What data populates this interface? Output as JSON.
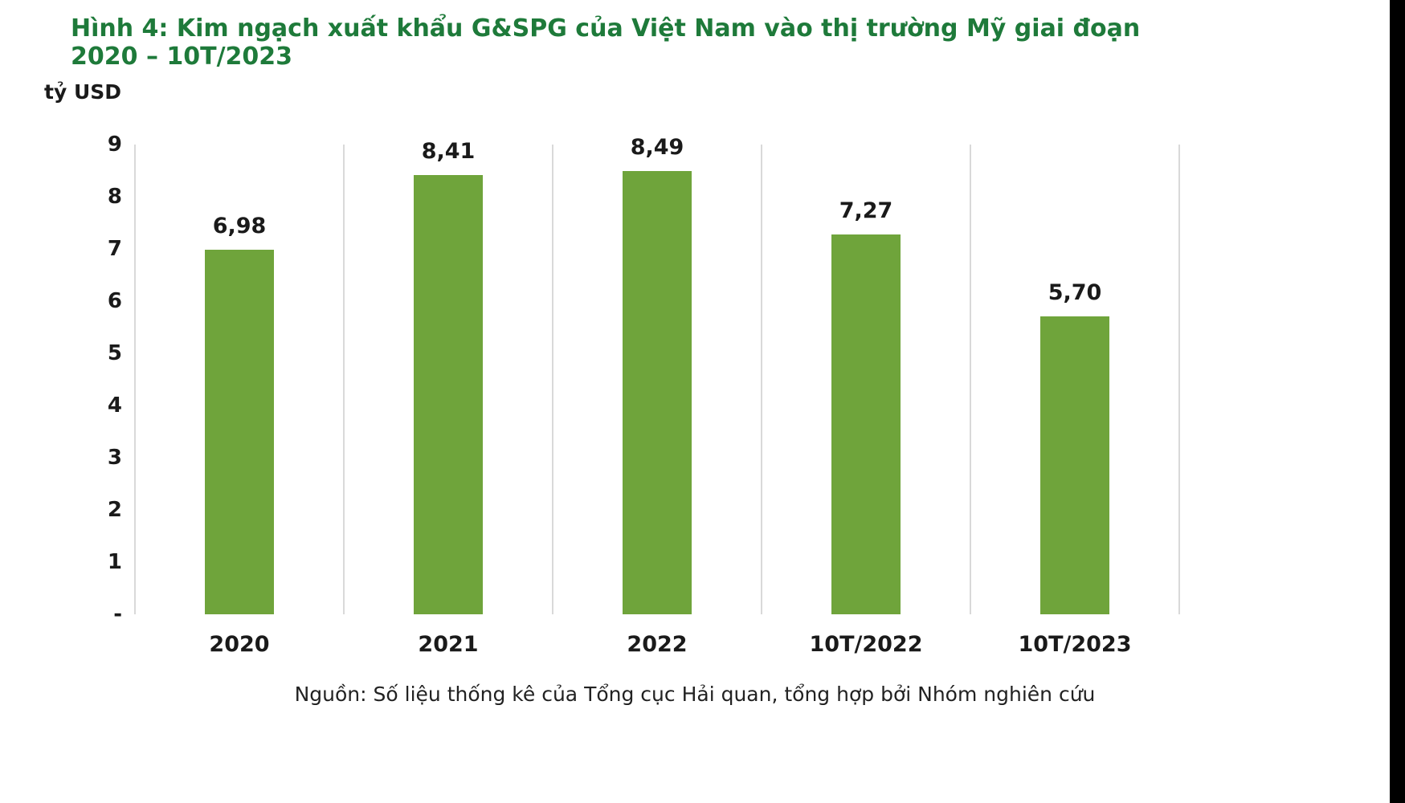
{
  "header": {
    "title": "Hình 4: Kim ngạch xuất khẩu G&SPG của Việt Nam vào thị trường Mỹ giai đoạn 2020 – 10T/2023"
  },
  "chart_data": {
    "type": "bar",
    "title": "Hình 4: Kim ngạch xuất khẩu G&SPG của Việt Nam vào thị trường Mỹ giai đoạn 2020 – 10T/2023",
    "unit_label": "tỷ USD",
    "categories": [
      "2020",
      "2021",
      "2022",
      "10T/2022",
      "10T/2023"
    ],
    "values": [
      6.98,
      8.41,
      8.49,
      7.27,
      5.7
    ],
    "value_labels": [
      "6,98",
      "8,41",
      "8,49",
      "7,27",
      "5,70"
    ],
    "xlabel": "",
    "ylabel": "tỷ USD",
    "ylim": [
      0,
      9
    ],
    "y_ticks": [
      {
        "label": "9",
        "value": 9
      },
      {
        "label": "8",
        "value": 8
      },
      {
        "label": "7",
        "value": 7
      },
      {
        "label": "6",
        "value": 6
      },
      {
        "label": "5",
        "value": 5
      },
      {
        "label": "4",
        "value": 4
      },
      {
        "label": "3",
        "value": 3
      },
      {
        "label": "2",
        "value": 2
      },
      {
        "label": "1",
        "value": 1
      },
      {
        "label": "-",
        "value": 0
      }
    ],
    "grid": "vertical category separators only",
    "legend": "none",
    "bar_color": "#6fa43b",
    "gridline_color": "#d9d9d9"
  },
  "footer": {
    "source": "Nguồn: Số liệu thống kê của Tổng cục Hải quan, tổng hợp bởi Nhóm nghiên cứu"
  },
  "colors": {
    "title_green": "#1e7a3a",
    "bar_green": "#6fa43b",
    "gridline_gray": "#d9d9d9",
    "text_black": "#1a1a1a"
  }
}
